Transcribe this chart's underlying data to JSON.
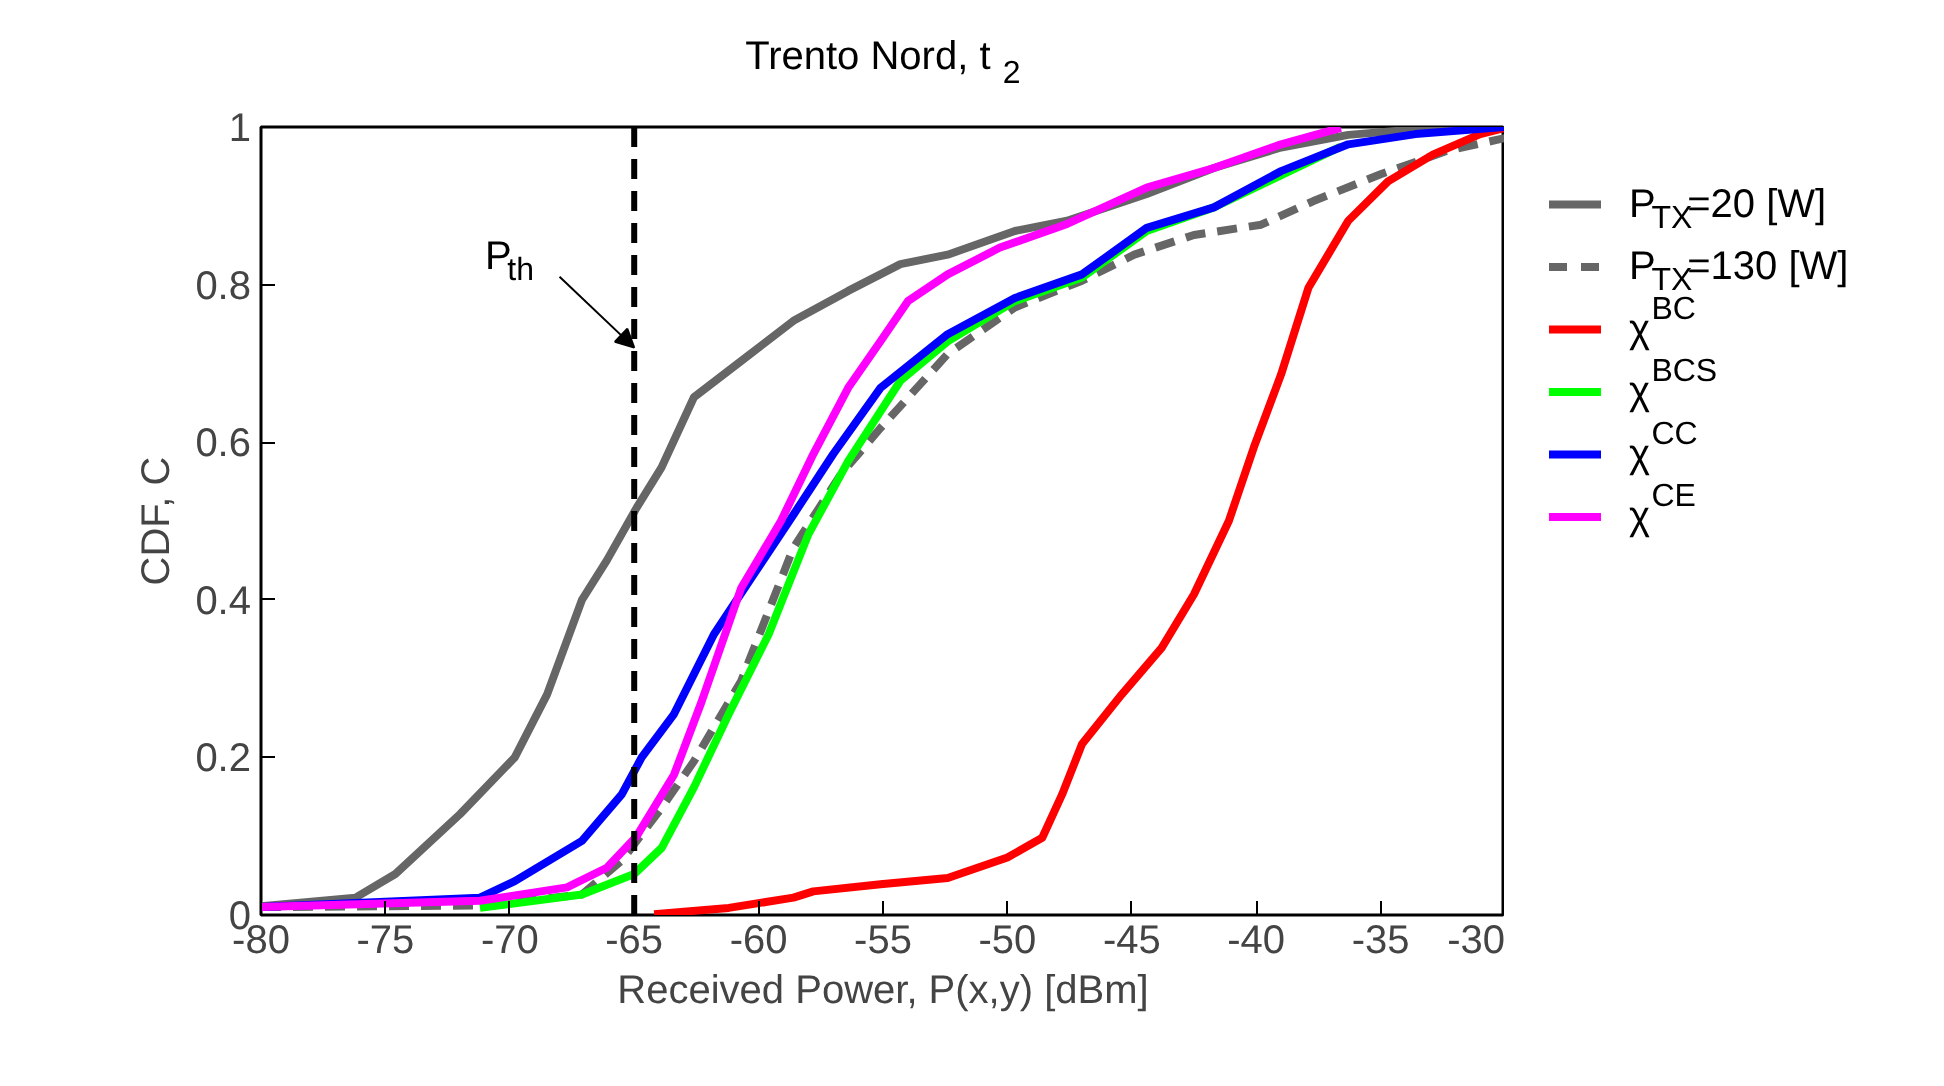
{
  "chart_data": {
    "type": "line",
    "title": "Trento Nord, t$_{2}$",
    "xlabel": "Received Power, P(x,y) [dBm]",
    "ylabel": "CDF, C",
    "xlim": [
      -80,
      -30
    ],
    "xticks": [
      -80,
      -75,
      -70,
      -65,
      -60,
      -55,
      -50,
      -45,
      -40,
      -35,
      -30
    ],
    "ylim": [
      0,
      1
    ],
    "yticks": [
      0,
      0.2,
      0.4,
      0.6,
      0.8,
      1
    ],
    "grid": false,
    "legend": "right",
    "line_style": "solid",
    "ref_lines": [
      {
        "axis": "x",
        "value": -65,
        "color": "#000000",
        "line_style": "dashed"
      }
    ],
    "annotations": [
      {
        "text": "P$_{th}$",
        "x": -65,
        "y": 0.72
      }
    ],
    "series": [
      {
        "name": "P$_{TX}$=20 [W]",
        "color": "#666666",
        "x": [
          -80,
          -76.2,
          -74.6,
          -72,
          -69.8,
          -68.5,
          -67.1,
          -66.1,
          -64.9,
          -63.9,
          -62.6,
          -60.7,
          -58.6,
          -56.4,
          -54.3,
          -52.4,
          -49.7,
          -47.6,
          -44.4,
          -41.7,
          -39,
          -36.3,
          -33.6,
          -30
        ],
        "values": [
          0.011,
          0.022,
          0.052,
          0.128,
          0.2,
          0.28,
          0.4,
          0.45,
          0.517,
          0.568,
          0.657,
          0.703,
          0.754,
          0.792,
          0.826,
          0.838,
          0.868,
          0.881,
          0.915,
          0.948,
          0.974,
          0.99,
          0.997,
          1.0
        ]
      },
      {
        "name": "P$_{TX}$=130 [W]",
        "color": "#666666",
        "line_style": "dashed",
        "x": [
          -80,
          -71.2,
          -67.1,
          -65.5,
          -63.9,
          -62.6,
          -60.7,
          -58.6,
          -56.7,
          -55.1,
          -52.4,
          -49.7,
          -47,
          -44.9,
          -42.5,
          -39.8,
          -37.7,
          -35,
          -32.3,
          -30
        ],
        "values": [
          0.01,
          0.012,
          0.026,
          0.069,
          0.136,
          0.195,
          0.297,
          0.466,
          0.559,
          0.618,
          0.712,
          0.771,
          0.805,
          0.838,
          0.863,
          0.876,
          0.906,
          0.94,
          0.97,
          0.986
        ]
      },
      {
        "name": "χ$^{BC}$",
        "color": "#ff0000",
        "x": [
          -64.2,
          -61.2,
          -58.6,
          -57.8,
          -55.1,
          -52.4,
          -50,
          -48.6,
          -47.8,
          -47,
          -45.4,
          -43.8,
          -42.5,
          -41.1,
          -40.1,
          -39,
          -37.9,
          -36.3,
          -34.7,
          -32.9,
          -31,
          -30
        ],
        "values": [
          0.001,
          0.009,
          0.022,
          0.03,
          0.039,
          0.047,
          0.073,
          0.098,
          0.153,
          0.217,
          0.28,
          0.339,
          0.407,
          0.5,
          0.593,
          0.686,
          0.796,
          0.881,
          0.931,
          0.965,
          0.991,
          0.999
        ]
      },
      {
        "name": "χ$^{BCS}$",
        "color": "#00ff00",
        "x": [
          -71.2,
          -67.1,
          -65,
          -63.9,
          -62.6,
          -61.2,
          -59.6,
          -58,
          -56.4,
          -54.3,
          -52.4,
          -49.7,
          -47,
          -44.4,
          -41.7,
          -36.6
        ],
        "values": [
          0.009,
          0.026,
          0.052,
          0.085,
          0.162,
          0.255,
          0.356,
          0.483,
          0.576,
          0.678,
          0.728,
          0.779,
          0.809,
          0.868,
          0.898,
          0.975
        ]
      },
      {
        "name": "χ$^{CC}$",
        "color": "#0000ff",
        "x": [
          -80,
          -71.2,
          -69.8,
          -67.1,
          -65.5,
          -64.7,
          -63.4,
          -61.8,
          -60.2,
          -58.6,
          -57,
          -55.1,
          -52.4,
          -49.7,
          -47,
          -44.4,
          -41.7,
          -39,
          -36.3,
          -33.6,
          -30
        ],
        "values": [
          0.01,
          0.022,
          0.043,
          0.094,
          0.153,
          0.2,
          0.255,
          0.356,
          0.432,
          0.508,
          0.585,
          0.669,
          0.737,
          0.783,
          0.813,
          0.872,
          0.898,
          0.944,
          0.978,
          0.991,
          1.0
        ]
      },
      {
        "name": "χ$^{CE}$",
        "color": "#ff00ff",
        "x": [
          -80,
          -71.2,
          -67.7,
          -66.1,
          -64.9,
          -63.4,
          -62.3,
          -60.7,
          -59.1,
          -57.8,
          -56.4,
          -55.1,
          -54,
          -52.4,
          -50.3,
          -47.6,
          -44.4,
          -41.7,
          -39,
          -36.6
        ],
        "values": [
          0.01,
          0.018,
          0.035,
          0.06,
          0.1,
          0.178,
          0.27,
          0.415,
          0.5,
          0.585,
          0.669,
          0.728,
          0.779,
          0.813,
          0.847,
          0.877,
          0.923,
          0.948,
          0.978,
          0.999
        ]
      }
    ]
  }
}
